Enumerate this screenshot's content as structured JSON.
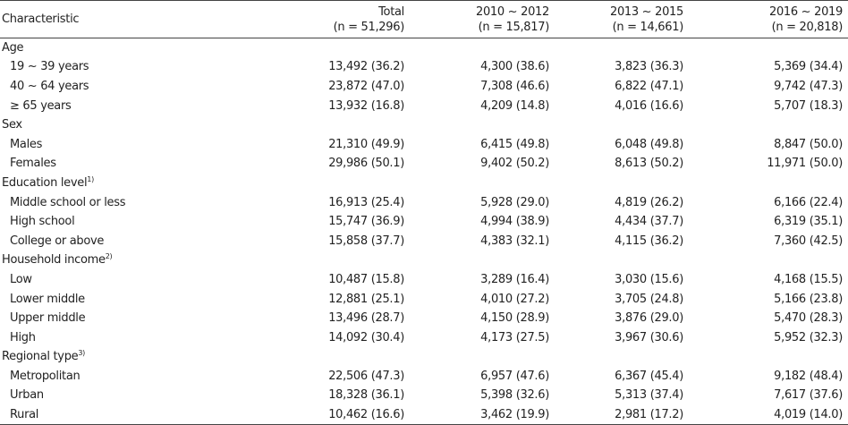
{
  "header": {
    "characteristic": "Characteristic",
    "columns": [
      {
        "label": "Total",
        "n": "(n = 51,296)"
      },
      {
        "label": "2010 ~ 2012",
        "n": "(n = 15,817)"
      },
      {
        "label": "2013 ~ 2015",
        "n": "(n = 14,661)"
      },
      {
        "label": "2016 ~ 2019",
        "n": "(n = 20,818)"
      }
    ]
  },
  "groups": [
    {
      "label": "Age",
      "note": "",
      "rows": [
        {
          "label": "19 ~ 39 years",
          "values": [
            "13,492 (36.2)",
            "4,300 (38.6)",
            "3,823 (36.3)",
            "5,369 (34.4)"
          ]
        },
        {
          "label": "40 ~ 64 years",
          "values": [
            "23,872 (47.0)",
            "7,308 (46.6)",
            "6,822 (47.1)",
            "9,742 (47.3)"
          ]
        },
        {
          "label": "≥ 65 years",
          "values": [
            "13,932 (16.8)",
            "4,209 (14.8)",
            "4,016 (16.6)",
            "5,707 (18.3)"
          ]
        }
      ]
    },
    {
      "label": "Sex",
      "note": "",
      "rows": [
        {
          "label": "Males",
          "values": [
            "21,310 (49.9)",
            "6,415 (49.8)",
            "6,048 (49.8)",
            "8,847 (50.0)"
          ]
        },
        {
          "label": "Females",
          "values": [
            "29,986 (50.1)",
            "9,402 (50.2)",
            "8,613 (50.2)",
            "11,971 (50.0)"
          ]
        }
      ]
    },
    {
      "label": "Education level",
      "note": "1)",
      "rows": [
        {
          "label": "Middle school or less",
          "values": [
            "16,913 (25.4)",
            "5,928 (29.0)",
            "4,819 (26.2)",
            "6,166 (22.4)"
          ]
        },
        {
          "label": "High school",
          "values": [
            "15,747 (36.9)",
            "4,994 (38.9)",
            "4,434 (37.7)",
            "6,319 (35.1)"
          ]
        },
        {
          "label": "College or above",
          "values": [
            "15,858 (37.7)",
            "4,383 (32.1)",
            "4,115 (36.2)",
            "7,360 (42.5)"
          ]
        }
      ]
    },
    {
      "label": "Household income",
      "note": "2)",
      "rows": [
        {
          "label": "Low",
          "values": [
            "10,487 (15.8)",
            "3,289 (16.4)",
            "3,030 (15.6)",
            "4,168 (15.5)"
          ]
        },
        {
          "label": "Lower middle",
          "values": [
            "12,881 (25.1)",
            "4,010 (27.2)",
            "3,705 (24.8)",
            "5,166 (23.8)"
          ]
        },
        {
          "label": "Upper middle",
          "values": [
            "13,496 (28.7)",
            "4,150 (28.9)",
            "3,876 (29.0)",
            "5,470 (28.3)"
          ]
        },
        {
          "label": "High",
          "values": [
            "14,092 (30.4)",
            "4,173 (27.5)",
            "3,967 (30.6)",
            "5,952 (32.3)"
          ]
        }
      ]
    },
    {
      "label": "Regional type",
      "note": "3)",
      "rows": [
        {
          "label": "Metropolitan",
          "values": [
            "22,506 (47.3)",
            "6,957 (47.6)",
            "6,367 (45.4)",
            "9,182 (48.4)"
          ]
        },
        {
          "label": "Urban",
          "values": [
            "18,328 (36.1)",
            "5,398 (32.6)",
            "5,313 (37.4)",
            "7,617 (37.6)"
          ]
        },
        {
          "label": "Rural",
          "values": [
            "10,462 (16.6)",
            "3,462 (19.9)",
            "2,981 (17.2)",
            "4,019 (14.0)"
          ]
        }
      ]
    }
  ]
}
